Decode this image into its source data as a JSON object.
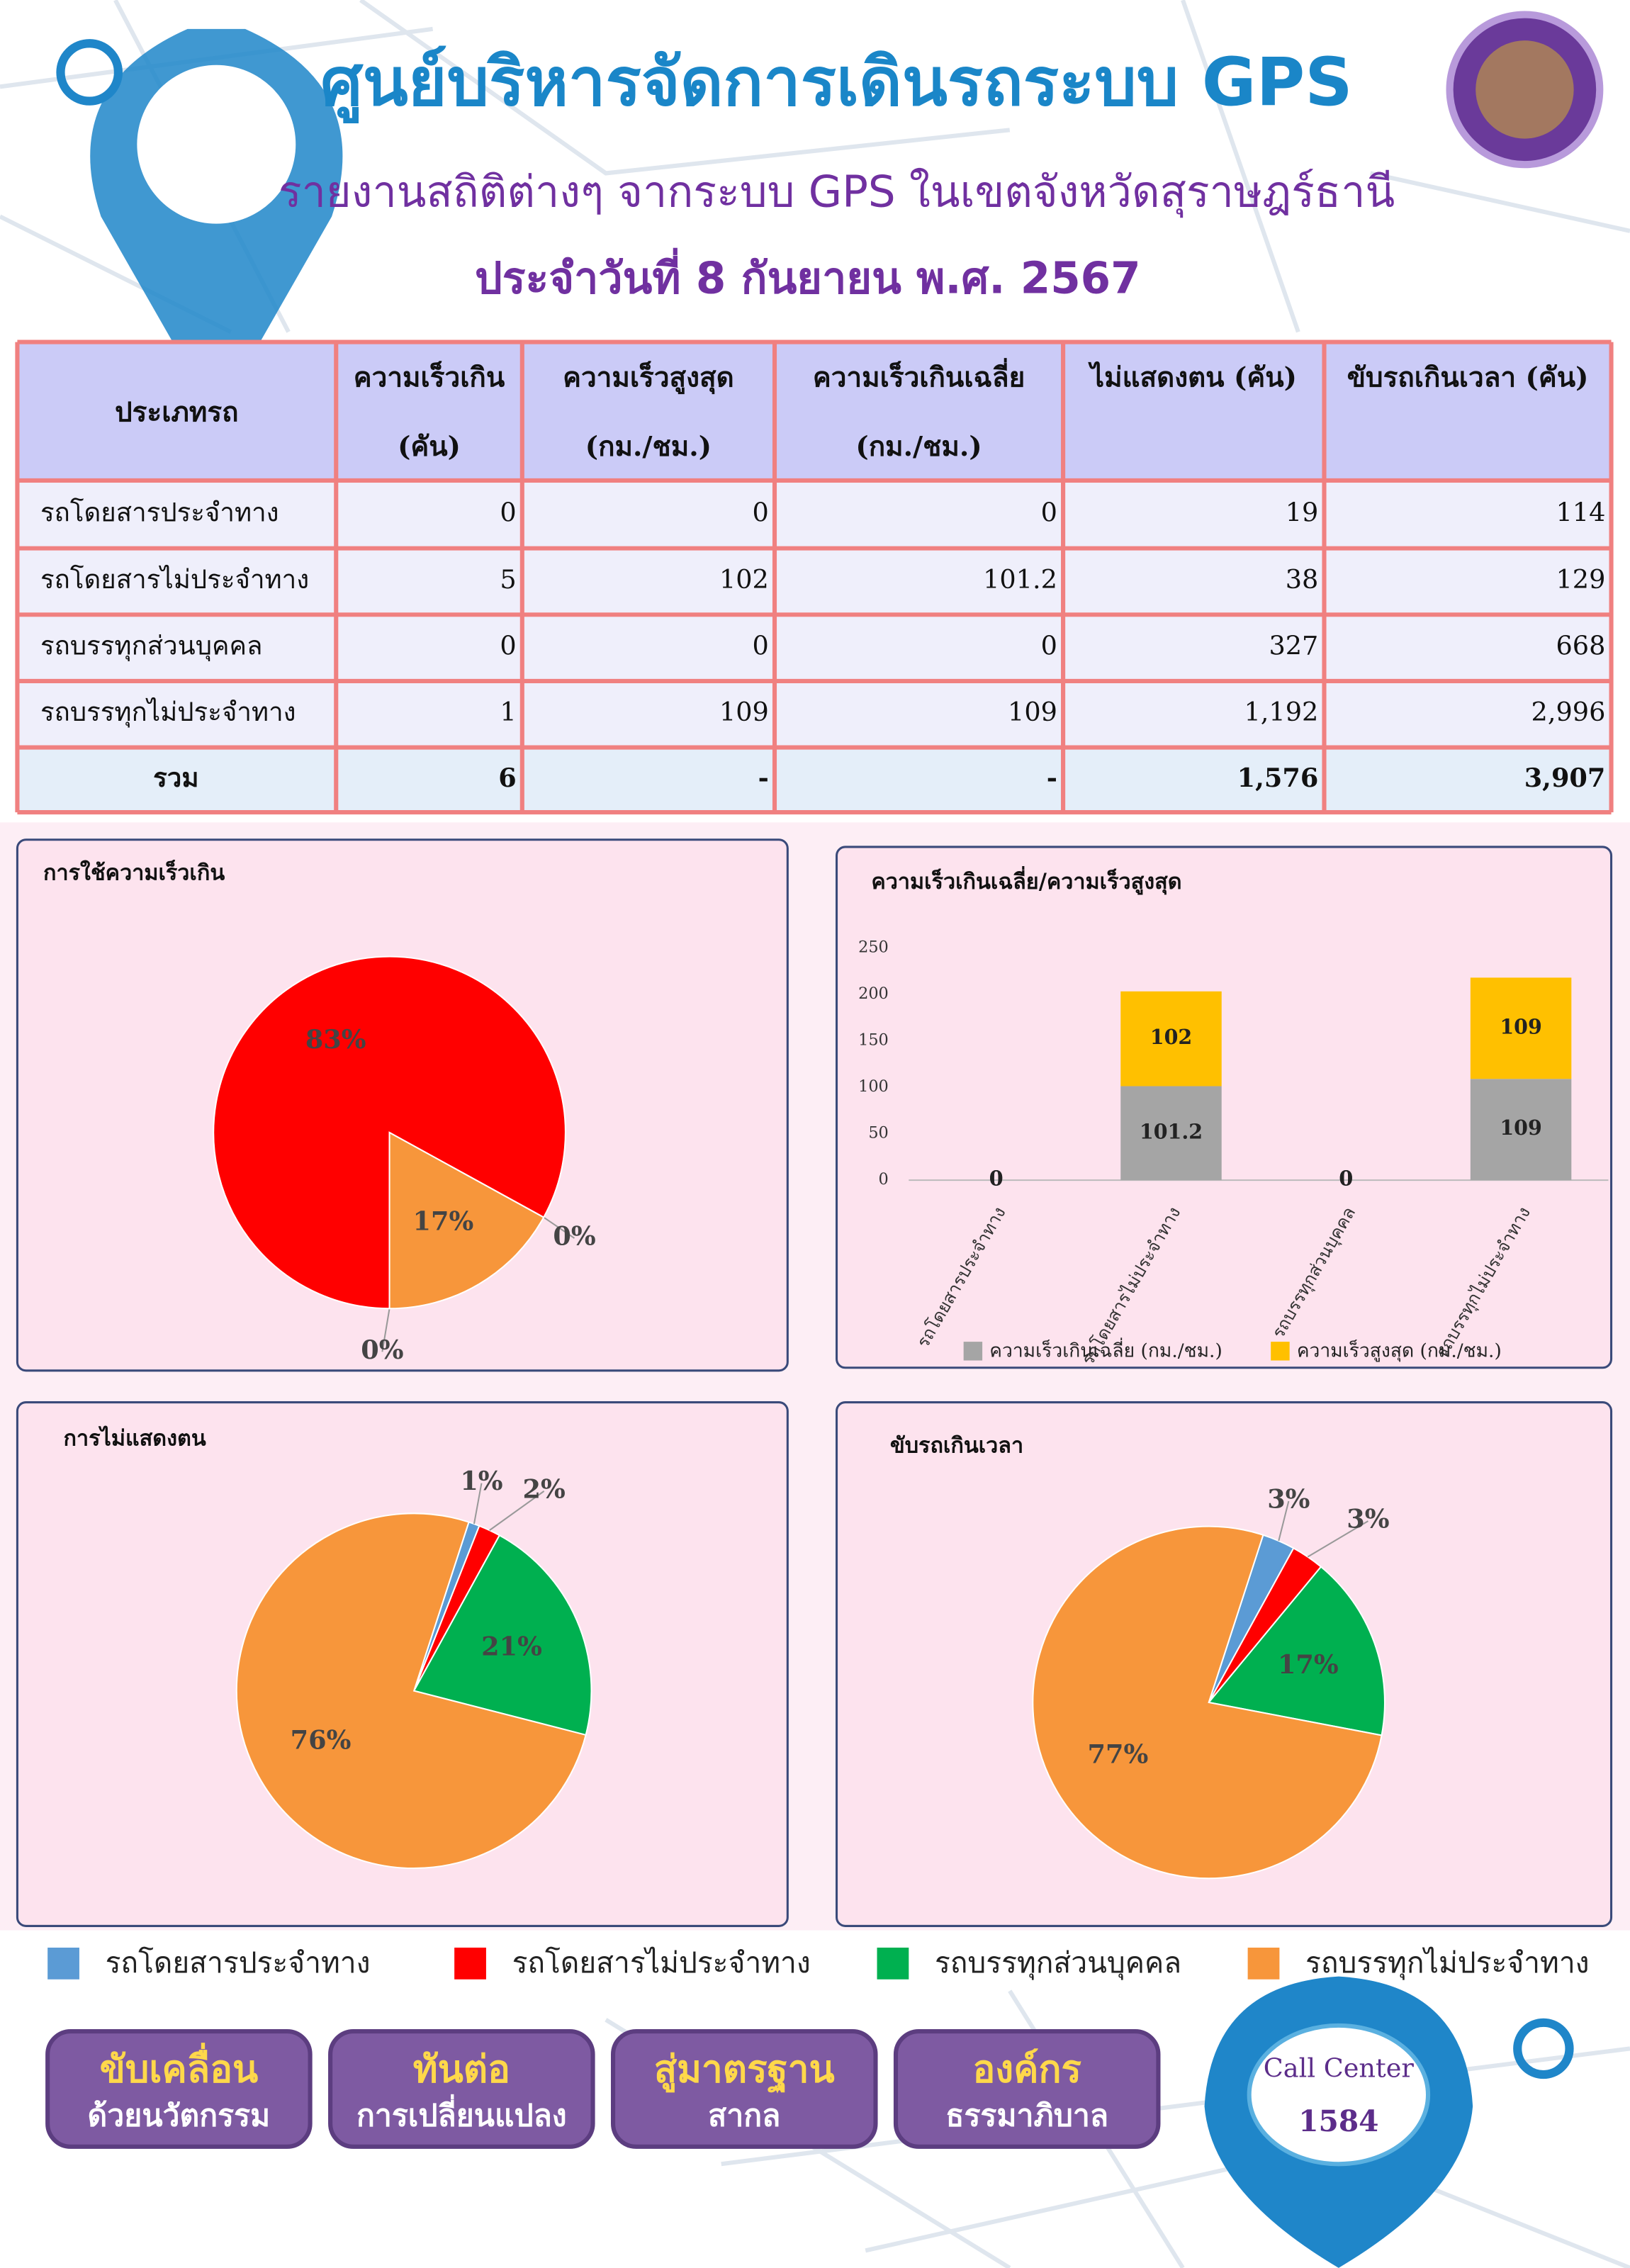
{
  "header": {
    "title": "ศูนย์บริหารจัดการเดินรถระบบ GPS",
    "subtitle": "รายงานสถิติต่างๆ จากระบบ GPS ในเขตจังหวัดสุราษฎร์ธานี",
    "date": "ประจำวันที่  8  กันยายน   พ.ศ. 2567"
  },
  "table": {
    "headers": [
      [
        "ประเภทรถ"
      ],
      [
        "ความเร็วเกิน",
        "(คัน)"
      ],
      [
        "ความเร็วสูงสุด",
        "(กม./ชม.)"
      ],
      [
        "ความเร็วเกินเฉลี่ย",
        "(กม./ชม.)"
      ],
      [
        "ไม่แสดงตน (คัน)"
      ],
      [
        "ขับรถเกินเวลา (คัน)"
      ]
    ],
    "rows": [
      [
        "รถโดยสารประจำทาง",
        "0",
        "0",
        "0",
        "19",
        "114"
      ],
      [
        "รถโดยสารไม่ประจำทาง",
        "5",
        "102",
        "101.2",
        "38",
        "129"
      ],
      [
        "รถบรรทุกส่วนบุคคล",
        "0",
        "0",
        "0",
        "327",
        "668"
      ],
      [
        "รถบรรทุกไม่ประจำทาง",
        "1",
        "109",
        "109",
        "1,192",
        "2,996"
      ],
      [
        "รวม",
        "6",
        "-",
        "-",
        "1,576",
        "3,907"
      ]
    ]
  },
  "legend": {
    "categories": [
      "รถโดยสารประจำทาง",
      "รถโดยสารไม่ประจำทาง",
      "รถบรรทุกส่วนบุคคล",
      "รถบรรทุกไม่ประจำทาง"
    ],
    "colors": [
      "#5b9bd5",
      "#ff0000",
      "#00b050",
      "#f7963b"
    ]
  },
  "chart_data": [
    {
      "type": "pie",
      "title": "การใช้ความเร็วเกิน",
      "values": [
        0,
        83,
        0,
        17
      ],
      "value_labels": [
        "0%",
        "83%",
        "0%",
        "17%"
      ]
    },
    {
      "type": "bar",
      "title": "ความเร็วเกินเฉลี่ย/ความเร็วสูงสุด",
      "stacked": true,
      "categories": [
        "รถโดยสารประจำทาง",
        "รถโดยสารไม่ประจำทาง",
        "รถบรรทุกส่วนบุคคล",
        "รถบรรทุกไม่ประจำทาง"
      ],
      "series": [
        {
          "name": "ความเร็วเกินเฉลี่ย (กม./ชม.)",
          "color": "#a5a5a5",
          "values": [
            0,
            101.2,
            0,
            109
          ]
        },
        {
          "name": "ความเร็วสูงสุด (กม./ชม.)",
          "color": "#ffc000",
          "values": [
            0,
            102,
            0,
            109
          ]
        }
      ],
      "ylim": [
        0,
        250
      ],
      "yticks": [
        0,
        50,
        100,
        150,
        200,
        250
      ]
    },
    {
      "type": "pie",
      "title": "การไม่แสดงตน",
      "values": [
        1,
        2,
        21,
        76
      ],
      "value_labels": [
        "1%",
        "2%",
        "21%",
        "76%"
      ]
    },
    {
      "type": "pie",
      "title": "ขับรถเกินเวลา",
      "values": [
        3,
        3,
        17,
        77
      ],
      "value_labels": [
        "3%",
        "3%",
        "17%",
        "77%"
      ]
    }
  ],
  "footer": {
    "buttons": [
      [
        "ขับเคลื่อน",
        "ด้วยนวัตกรรม"
      ],
      [
        "ทันต่อ",
        "การเปลี่ยนแปลง"
      ],
      [
        "สู่มาตรฐาน",
        "สากล"
      ],
      [
        "องค์กร",
        "ธรรมาภิบาล"
      ]
    ],
    "call_center": {
      "label": "Call Center",
      "number": "1584"
    }
  }
}
